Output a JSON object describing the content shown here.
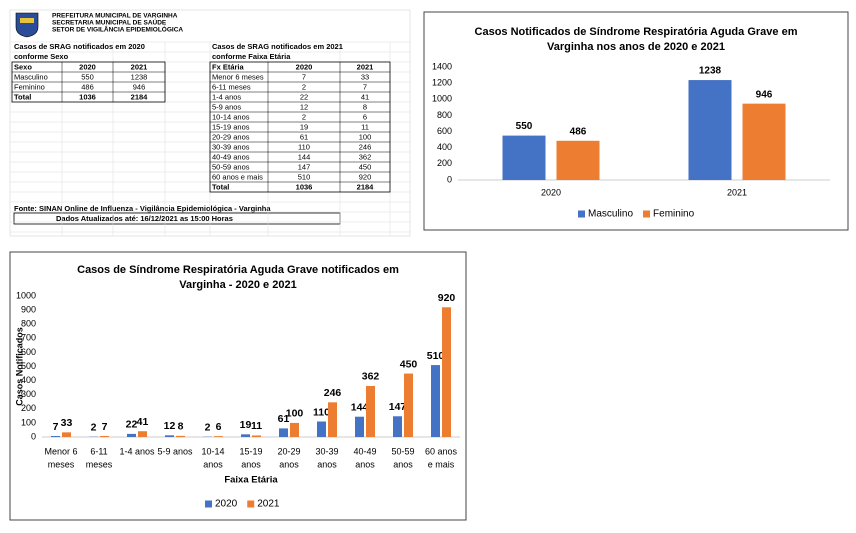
{
  "header": {
    "lines": [
      "PREFEITURA MUNICIPAL DE VARGINHA",
      "SECRETARIA MUNICIPAL DE SAÚDE",
      "SETOR DE VIGILÂNCIA EPIDEMIOLÓGICA"
    ]
  },
  "table_sex": {
    "title": [
      "Casos de SRAG notificados em 2020",
      "conforme Sexo"
    ],
    "header": [
      "Sexo",
      "2020",
      "2021"
    ],
    "rows": [
      [
        "Masculino",
        "550",
        "1238"
      ],
      [
        "Feminino",
        "486",
        "946"
      ],
      [
        "Total",
        "1036",
        "2184"
      ]
    ]
  },
  "table_age": {
    "title": [
      "Casos de SRAG notificados em 2021",
      "conforme Faixa Etária"
    ],
    "header": [
      "Fx Etária",
      "2020",
      "2021"
    ],
    "rows": [
      [
        "Menor 6 meses",
        "7",
        "33"
      ],
      [
        "6-11 meses",
        "2",
        "7"
      ],
      [
        "1-4 anos",
        "22",
        "41"
      ],
      [
        "5-9 anos",
        "12",
        "8"
      ],
      [
        "10-14 anos",
        "2",
        "6"
      ],
      [
        "15-19 anos",
        "19",
        "11"
      ],
      [
        "20-29 anos",
        "61",
        "100"
      ],
      [
        "30-39 anos",
        "110",
        "246"
      ],
      [
        "40-49 anos",
        "144",
        "362"
      ],
      [
        "50-59 anos",
        "147",
        "450"
      ],
      [
        "60 anos e mais",
        "510",
        "920"
      ],
      [
        "Total",
        "1036",
        "2184"
      ]
    ]
  },
  "source": "Fonte: SINAN Online de Influenza - Vigilância Epidemiológica - Varginha",
  "updated": "Dados Atualizados até: 16/12/2021 as 15:00 Horas",
  "chart_data": [
    {
      "type": "bar",
      "title": [
        "Casos Notificados de Síndrome Respiratória Aguda Grave em",
        "Varginha nos anos de 2020 e 2021"
      ],
      "categories": [
        [
          "2020"
        ],
        [
          "2021"
        ]
      ],
      "series": [
        {
          "name": "Masculino",
          "color": "#4472c4",
          "values": [
            550,
            1238
          ]
        },
        {
          "name": "Feminino",
          "color": "#ed7d31",
          "values": [
            486,
            946
          ]
        }
      ],
      "ylim": [
        0,
        1400
      ],
      "yticks": [
        0,
        200,
        400,
        600,
        800,
        1000,
        1200,
        1400
      ],
      "legend": "bottom"
    },
    {
      "type": "bar",
      "title": [
        "Casos de Síndrome Respiratória Aguda Grave notificados em",
        "Varginha - 2020 e 2021"
      ],
      "y_label": "Casos Notificados",
      "x_label": "Faixa Etária",
      "categories": [
        [
          "Menor 6",
          "meses"
        ],
        [
          "6-11",
          "meses"
        ],
        [
          "1-4 anos"
        ],
        [
          "5-9 anos"
        ],
        [
          "10-14",
          "anos"
        ],
        [
          "15-19",
          "anos"
        ],
        [
          "20-29",
          "anos"
        ],
        [
          "30-39",
          "anos"
        ],
        [
          "40-49",
          "anos"
        ],
        [
          "50-59",
          "anos"
        ],
        [
          "60 anos",
          "e mais"
        ]
      ],
      "series": [
        {
          "name": "2020",
          "color": "#4472c4",
          "values": [
            7,
            2,
            22,
            12,
            2,
            19,
            61,
            110,
            144,
            147,
            510
          ]
        },
        {
          "name": "2021",
          "color": "#ed7d31",
          "values": [
            33,
            7,
            41,
            8,
            6,
            11,
            100,
            246,
            362,
            450,
            920
          ]
        }
      ],
      "ylim": [
        0,
        1000
      ],
      "yticks": [
        0,
        100,
        200,
        300,
        400,
        500,
        600,
        700,
        800,
        900,
        1000
      ],
      "legend": "bottom"
    }
  ]
}
